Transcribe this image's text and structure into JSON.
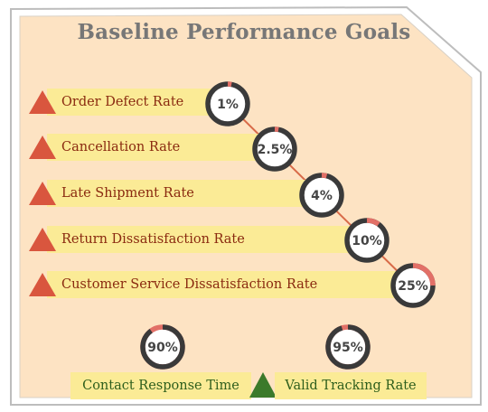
{
  "title": "Baseline Performance Goals",
  "goals": [
    {
      "label": "Order Defect Rate",
      "value": "1%",
      "pct": 1
    },
    {
      "label": "Cancellation Rate",
      "value": "2.5%",
      "pct": 2.5
    },
    {
      "label": "Late Shipment Rate",
      "value": "4%",
      "pct": 4
    },
    {
      "label": "Return Dissatisfaction Rate",
      "value": "10%",
      "pct": 10
    },
    {
      "label": "Customer Service Dissatisfaction Rate",
      "value": "25%",
      "pct": 25
    }
  ],
  "targets": [
    {
      "label": "Contact Response Time",
      "value": "90%",
      "pct": 90
    },
    {
      "label": "Valid Tracking Rate",
      "value": "95%",
      "pct": 95
    }
  ],
  "colors": {
    "background": "#fde3c3",
    "bar": "#fbeb96",
    "down_triangle": "#d9563e",
    "up_triangle": "#3b7a2b",
    "ring_dark": "#3a3a3a",
    "ring_red": "#e27067"
  },
  "icons": [
    "warning-triangle-icon",
    "up-triangle-icon"
  ]
}
